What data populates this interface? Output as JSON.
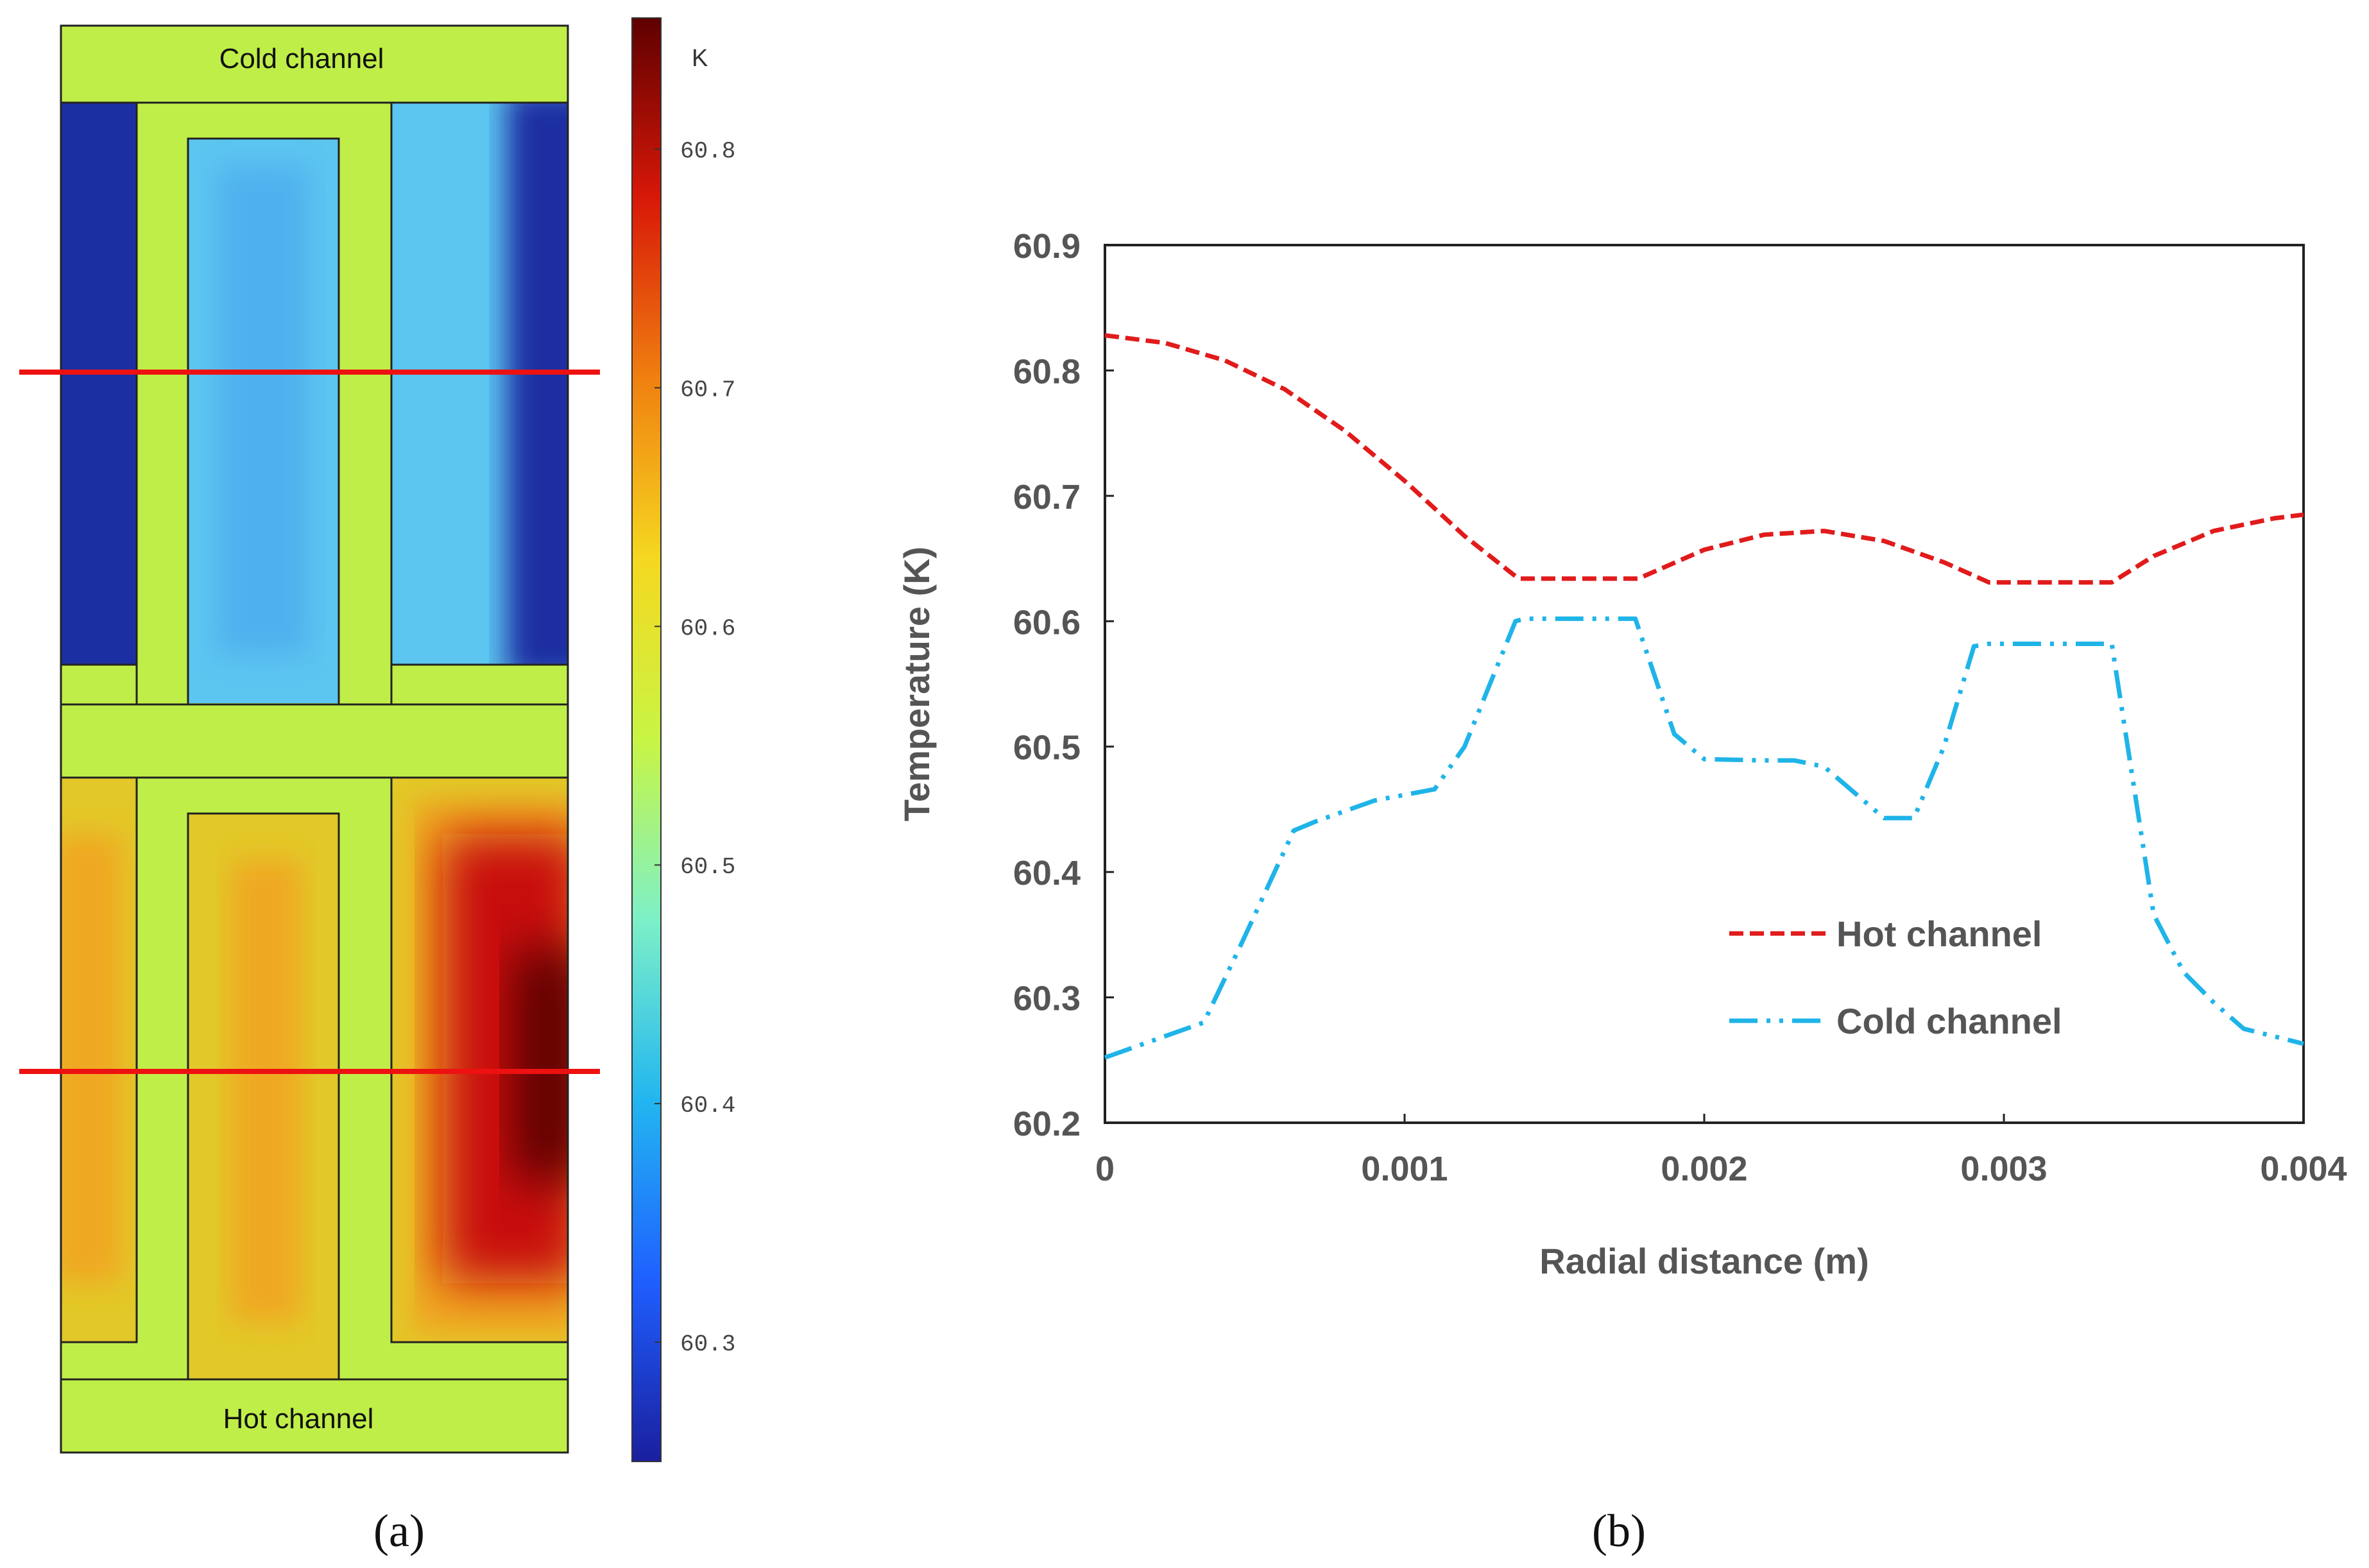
{
  "panel_a": {
    "caption": "(a)",
    "top_label": "Cold channel",
    "bottom_label": "Hot channel",
    "colorbar": {
      "unit": "K",
      "ticks": [
        "60.8",
        "60.7",
        "60.6",
        "60.5",
        "60.4",
        "60.3"
      ],
      "range": [
        60.25,
        60.855
      ],
      "colors": [
        "#1a1f9e",
        "#1f5fff",
        "#22b6f0",
        "#7df0c8",
        "#c8f544",
        "#f5d820",
        "#f08010",
        "#d81808",
        "#5e0000"
      ]
    },
    "line_color": "#ee1111",
    "region_colors": {
      "solid": "#c0ee48",
      "cold_deep": "#1c2fa2",
      "cold_light": "#5cc5f0",
      "hot_orange": "#f0a820",
      "hot_yellow": "#e2c828",
      "hot_red": "#c81010",
      "hot_dark": "#5a0000"
    }
  },
  "panel_b": {
    "caption": "(b)"
  },
  "chart_data": {
    "type": "line",
    "xlabel": "Radial distance (m)",
    "ylabel": "Temperature (K)",
    "xlim": [
      0,
      0.004
    ],
    "ylim": [
      60.2,
      60.9
    ],
    "xticks": [
      0,
      0.001,
      0.002,
      0.003,
      0.004
    ],
    "xtick_labels": [
      "0",
      "0.001",
      "0.002",
      "0.003",
      "0.004"
    ],
    "yticks": [
      60.2,
      60.3,
      60.4,
      60.5,
      60.6,
      60.7,
      60.8,
      60.9
    ],
    "ytick_labels": [
      "60.2",
      "60.3",
      "60.4",
      "60.5",
      "60.6",
      "60.7",
      "60.8",
      "60.9"
    ],
    "legend_position": "lower-right",
    "series": [
      {
        "name": "Hot channel",
        "color": "#e11b1b",
        "style": "dashed",
        "x": [
          0,
          0.0002,
          0.0004,
          0.0006,
          0.0008,
          0.001,
          0.0012,
          0.00138,
          0.0016,
          0.00178,
          0.002,
          0.0022,
          0.0024,
          0.0026,
          0.0028,
          0.00295,
          0.0032,
          0.00336,
          0.0035,
          0.0037,
          0.0039,
          0.004
        ],
        "y": [
          60.828,
          60.822,
          60.808,
          60.785,
          60.752,
          60.712,
          60.668,
          60.634,
          60.634,
          60.634,
          60.657,
          60.669,
          60.672,
          60.664,
          60.647,
          60.631,
          60.631,
          60.631,
          60.652,
          60.672,
          60.682,
          60.685
        ]
      },
      {
        "name": "Cold channel",
        "color": "#1fb4e8",
        "style": "dash-dot-dot",
        "x": [
          0,
          0.00033,
          0.00045,
          0.00063,
          0.0007,
          0.0009,
          0.0011,
          0.0012,
          0.00137,
          0.0014,
          0.0016,
          0.00177,
          0.0019,
          0.002,
          0.0022,
          0.0023,
          0.0024,
          0.0026,
          0.0027,
          0.0028,
          0.0029,
          0.00295,
          0.0032,
          0.00336,
          0.0035,
          0.0036,
          0.0037,
          0.0038,
          0.004
        ],
        "y": [
          60.252,
          60.28,
          60.34,
          60.433,
          60.44,
          60.457,
          60.466,
          60.5,
          60.6,
          60.602,
          60.602,
          60.602,
          60.51,
          60.49,
          60.489,
          60.489,
          60.484,
          60.443,
          60.443,
          60.5,
          60.58,
          60.582,
          60.582,
          60.582,
          60.366,
          60.32,
          60.296,
          60.275,
          60.263
        ]
      }
    ]
  }
}
